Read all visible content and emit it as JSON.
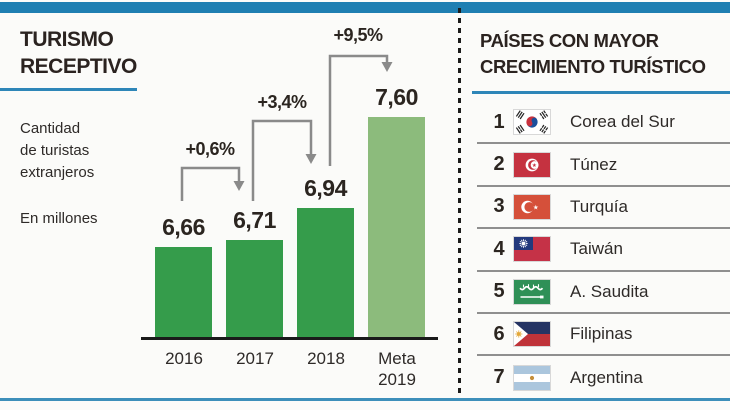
{
  "page": {
    "background": "#fbfbf9",
    "accent_blue": "#1f7fb2",
    "bar_green": "#359c4b",
    "bar_light_green": "#8cbb7c"
  },
  "left_panel": {
    "title": "TURISMO\nRECEPTIVO",
    "subtitle": "Cantidad\nde turistas\nextranjeros",
    "unit_note": "En millones"
  },
  "chart_data": {
    "type": "bar",
    "title": "TURISMO RECEPTIVO",
    "categories": [
      "2016",
      "2017",
      "2018",
      "Meta 2019"
    ],
    "values": [
      6.66,
      6.71,
      6.94,
      7.6
    ],
    "value_labels": [
      "6,66",
      "6,71",
      "6,94",
      "7,60"
    ],
    "ylabel": "Cantidad de turistas extranjeros (en millones)",
    "ylim": [
      6.0,
      7.6
    ],
    "grid": false,
    "legend": "none",
    "bar_colors": {
      "actual": "#359c4b",
      "target": "#8cbb7c"
    },
    "growth_annotations": [
      {
        "from": "2016",
        "to": "2017",
        "label": "+0,6%"
      },
      {
        "from": "2017",
        "to": "2018",
        "label": "+3,4%"
      },
      {
        "from": "2018",
        "to": "Meta 2019",
        "label": "+9,5%"
      }
    ]
  },
  "right_panel": {
    "title": "PAÍSES CON MAYOR\nCRECIMIENTO TURÍSTICO",
    "items": [
      {
        "rank": "1",
        "country": "Corea del Sur",
        "flag": "south-korea"
      },
      {
        "rank": "2",
        "country": "Túnez",
        "flag": "tunisia"
      },
      {
        "rank": "3",
        "country": "Turquía",
        "flag": "turkey"
      },
      {
        "rank": "4",
        "country": "Taiwán",
        "flag": "taiwan"
      },
      {
        "rank": "5",
        "country": "A. Saudita",
        "flag": "saudi-arabia"
      },
      {
        "rank": "6",
        "country": "Filipinas",
        "flag": "philippines"
      },
      {
        "rank": "7",
        "country": "Argentina",
        "flag": "argentina"
      }
    ]
  }
}
